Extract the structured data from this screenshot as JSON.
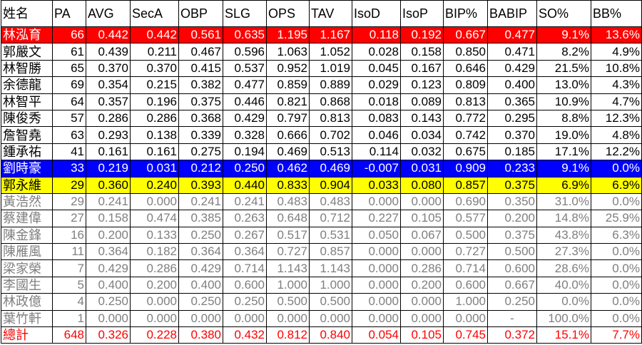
{
  "table": {
    "header": [
      "姓名",
      "PA",
      "AVG",
      "SecA",
      "OBP",
      "SLG",
      "OPS",
      "TAV",
      "IsoD",
      "IsoP",
      "BIP%",
      "BABIP",
      "SO%",
      "BB%"
    ],
    "rows": [
      [
        "林泓育",
        "66",
        "0.442",
        "0.442",
        "0.561",
        "0.635",
        "1.195",
        "1.167",
        "0.118",
        "0.192",
        "0.667",
        "0.477",
        "9.1%",
        "13.6%"
      ],
      [
        "郭嚴文",
        "61",
        "0.439",
        "0.211",
        "0.467",
        "0.596",
        "1.063",
        "1.052",
        "0.028",
        "0.158",
        "0.850",
        "0.471",
        "8.2%",
        "4.9%"
      ],
      [
        "林智勝",
        "65",
        "0.370",
        "0.370",
        "0.415",
        "0.537",
        "0.952",
        "1.019",
        "0.045",
        "0.167",
        "0.646",
        "0.429",
        "21.5%",
        "10.8%"
      ],
      [
        "余德龍",
        "69",
        "0.354",
        "0.215",
        "0.382",
        "0.477",
        "0.859",
        "0.889",
        "0.029",
        "0.123",
        "0.809",
        "0.400",
        "13.0%",
        "4.3%"
      ],
      [
        "林智平",
        "64",
        "0.357",
        "0.196",
        "0.375",
        "0.446",
        "0.821",
        "0.868",
        "0.018",
        "0.089",
        "0.813",
        "0.365",
        "10.9%",
        "4.7%"
      ],
      [
        "陳俊秀",
        "57",
        "0.286",
        "0.286",
        "0.368",
        "0.429",
        "0.797",
        "0.813",
        "0.083",
        "0.143",
        "0.772",
        "0.295",
        "8.8%",
        "12.3%"
      ],
      [
        "詹智堯",
        "63",
        "0.293",
        "0.138",
        "0.339",
        "0.328",
        "0.666",
        "0.702",
        "0.046",
        "0.034",
        "0.742",
        "0.370",
        "19.0%",
        "4.8%"
      ],
      [
        "鍾承祐",
        "41",
        "0.161",
        "0.161",
        "0.275",
        "0.194",
        "0.469",
        "0.513",
        "0.114",
        "0.032",
        "0.675",
        "0.185",
        "17.1%",
        "12.2%"
      ],
      [
        "劉時豪",
        "33",
        "0.219",
        "0.031",
        "0.212",
        "0.250",
        "0.462",
        "0.469",
        "-0.007",
        "0.031",
        "0.909",
        "0.233",
        "9.1%",
        "0.0%"
      ],
      [
        "郭永維",
        "29",
        "0.360",
        "0.240",
        "0.393",
        "0.440",
        "0.833",
        "0.904",
        "0.033",
        "0.080",
        "0.857",
        "0.375",
        "6.9%",
        "6.9%"
      ],
      [
        "黃浩然",
        "29",
        "0.241",
        "0.000",
        "0.241",
        "0.241",
        "0.483",
        "0.483",
        "0.000",
        "0.000",
        "0.690",
        "0.350",
        "31.0%",
        "0.0%"
      ],
      [
        "蔡建偉",
        "27",
        "0.158",
        "0.474",
        "0.385",
        "0.263",
        "0.648",
        "0.712",
        "0.227",
        "0.105",
        "0.577",
        "0.200",
        "14.8%",
        "25.9%"
      ],
      [
        "陳金鋒",
        "16",
        "0.200",
        "0.133",
        "0.250",
        "0.267",
        "0.517",
        "0.531",
        "0.050",
        "0.067",
        "0.500",
        "0.375",
        "43.8%",
        "6.3%"
      ],
      [
        "陳雁風",
        "11",
        "0.364",
        "0.182",
        "0.364",
        "0.364",
        "0.727",
        "0.857",
        "0.000",
        "0.000",
        "0.727",
        "0.500",
        "27.3%",
        "0.0%"
      ],
      [
        "梁家榮",
        "7",
        "0.429",
        "0.286",
        "0.429",
        "0.714",
        "1.143",
        "1.143",
        "0.000",
        "0.286",
        "0.714",
        "0.600",
        "28.6%",
        "0.0%"
      ],
      [
        "李國生",
        "5",
        "0.400",
        "0.200",
        "0.400",
        "0.600",
        "1.000",
        "1.000",
        "0.000",
        "0.200",
        "0.600",
        "0.667",
        "40.0%",
        "0.0%"
      ],
      [
        "林政億",
        "4",
        "0.250",
        "0.000",
        "0.250",
        "0.250",
        "0.500",
        "0.500",
        "0.000",
        "0.000",
        "1.000",
        "0.250",
        "0.0%",
        "0.0%"
      ],
      [
        "葉竹軒",
        "1",
        "0.000",
        "0.000",
        "0.000",
        "0.000",
        "0.000",
        "0.000",
        "0.000",
        "0.000",
        "0.000",
        "-",
        "100.0%",
        "0.0%"
      ],
      [
        "總計",
        "648",
        "0.326",
        "0.228",
        "0.380",
        "0.432",
        "0.812",
        "0.840",
        "0.054",
        "0.105",
        "0.745",
        "0.372",
        "15.1%",
        "7.7%"
      ]
    ]
  }
}
